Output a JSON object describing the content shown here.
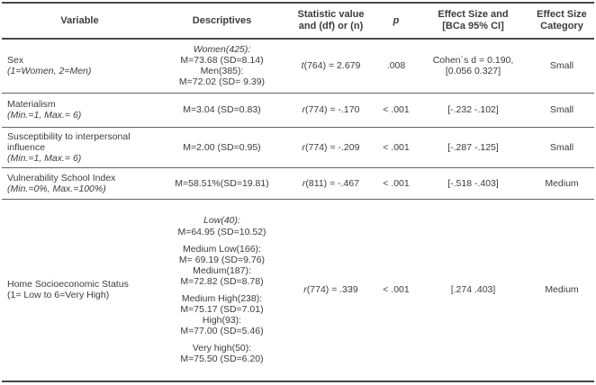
{
  "table": {
    "headers": [
      "Variable",
      "Descriptives",
      "Statistic value\nand (df) or (n)",
      "p",
      "Effect Size and\n[BCa 95% CI]",
      "Effect Size\nCategory"
    ],
    "rows": [
      {
        "variable": "Sex",
        "note": "(1=Women, 2=Men)",
        "note_italic": true,
        "descriptive_blocks": [
          [
            {
              "text": "Women(425):",
              "italic": true
            },
            {
              "text": "M=73.68 (SD=8.14)",
              "italic": false
            },
            {
              "text": "Men(385):",
              "italic": false
            },
            {
              "text": "M=72.02 (SD= 9.39)",
              "italic": false
            }
          ]
        ],
        "stat_letter": "t",
        "stat_rest": "(764) = 2.679",
        "p": ".008",
        "effect_lines": [
          "Cohen´s d = 0.190,",
          "[0.056 0.327]"
        ],
        "category": "Small"
      },
      {
        "variable": "Materialism",
        "note": "(Min.=1, Max.= 6)",
        "note_italic": true,
        "descriptive_blocks": [
          [
            {
              "text": "M=3.04 (SD=0.83)",
              "italic": false
            }
          ]
        ],
        "stat_letter": "r",
        "stat_rest": "(774) = -.170",
        "p": "< .001",
        "effect_lines": [
          "[-.232 -.102]"
        ],
        "category": "Small"
      },
      {
        "variable": "Susceptibility to interpersonal influence",
        "note": "(Min.=1, Max.= 6)",
        "note_italic": true,
        "descriptive_blocks": [
          [
            {
              "text": "M=2.00 (SD=0.95)",
              "italic": false
            }
          ]
        ],
        "stat_letter": "r",
        "stat_rest": "(774) = -.209",
        "p": "< .001",
        "effect_lines": [
          "[-.287 -.125]"
        ],
        "category": "Small"
      },
      {
        "variable": "Vulnerability School Index",
        "note": "(Min.=0%, Max.=100%)",
        "note_italic": true,
        "descriptive_blocks": [
          [
            {
              "text": "M=58.51%(SD=19.81)",
              "italic": false
            }
          ]
        ],
        "stat_letter": "r",
        "stat_rest": "(811) = -.467",
        "p": "< .001",
        "effect_lines": [
          "[-.518 -.403]"
        ],
        "category": "Medium"
      },
      {
        "variable": "Home Socioeconomic Status",
        "note": "(1= Low to 6=Very High)",
        "note_italic": false,
        "descriptive_blocks": [
          [
            {
              "text": "Low(40):",
              "italic": true
            },
            {
              "text": "M=64.95 (SD=10.52)",
              "italic": false
            }
          ],
          [
            {
              "text": "Medium Low(166):",
              "italic": false
            },
            {
              "text": "M= 69.19 (SD=9.76)",
              "italic": false
            },
            {
              "text": "Medium(187):",
              "italic": false
            },
            {
              "text": "M=72.82 (SD=8.78)",
              "italic": false
            }
          ],
          [
            {
              "text": "Medium High(238):",
              "italic": false
            },
            {
              "text": "M=75.17 (SD=7.01)",
              "italic": false
            },
            {
              "text": "High(93):",
              "italic": false
            },
            {
              "text": "M=77.00 (SD=5.46)",
              "italic": false
            }
          ],
          [
            {
              "text": "Very high(50):",
              "italic": false
            },
            {
              "text": "M=75.50 (SD=6.20)",
              "italic": false
            }
          ]
        ],
        "stat_letter": "r",
        "stat_rest": "(774) = .339",
        "p": "< .001",
        "effect_lines": [
          "[.274 .403]"
        ],
        "category": "Medium"
      }
    ]
  }
}
